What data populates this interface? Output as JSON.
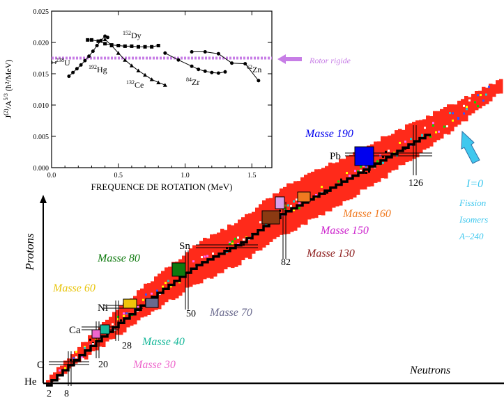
{
  "inset_chart": {
    "ylabel_main": "J",
    "ylabel_sup1": "(2)",
    "ylabel_mid": "/A",
    "ylabel_sup2": "5/3",
    "ylabel_unit": " (ħ²/MeV)",
    "xlabel": "FREQUENCE DE ROTATION (MeV)",
    "y_ticks": [
      "0.000",
      "0.005",
      "0.010",
      "0.015",
      "0.020",
      "0.025"
    ],
    "x_ticks": [
      "0.0",
      "0.5",
      "1.0",
      "1.5"
    ],
    "rotor_label": "Rotor rigide",
    "nuclei": [
      {
        "mass": "152",
        "sym": "Dy"
      },
      {
        "mass": "192",
        "sym": "Hg"
      },
      {
        "mass": "132",
        "sym": "Ce"
      },
      {
        "mass": "84",
        "sym": "Zr"
      },
      {
        "mass": "62",
        "sym": "Zn"
      },
      {
        "mass": "238",
        "sym": "U"
      }
    ]
  },
  "chart_data": {
    "type": "line",
    "xlabel": "FREQUENCE DE ROTATION (MeV)",
    "ylabel": "J(2)/A5/3 (ħ²/MeV)",
    "xlim": [
      0,
      1.65
    ],
    "ylim": [
      0,
      0.025
    ],
    "grid": false,
    "reference_line": {
      "name": "Rotor rigide",
      "y": 0.0175,
      "color": "#c77ee6"
    },
    "series": [
      {
        "name": "152Dy",
        "x": [
          0.27,
          0.3,
          0.35,
          0.4,
          0.45,
          0.5,
          0.55,
          0.6,
          0.65,
          0.7,
          0.75,
          0.8
        ],
        "y": [
          0.0204,
          0.0204,
          0.0202,
          0.0198,
          0.0196,
          0.0195,
          0.0194,
          0.0194,
          0.0193,
          0.0193,
          0.0193,
          0.0195
        ]
      },
      {
        "name": "192Hg",
        "x": [
          0.13,
          0.16,
          0.19,
          0.22,
          0.25,
          0.28,
          0.31,
          0.34,
          0.37,
          0.4,
          0.42
        ],
        "y": [
          0.0146,
          0.0152,
          0.0158,
          0.0164,
          0.0171,
          0.0178,
          0.0186,
          0.0195,
          0.0203,
          0.021,
          0.0208
        ]
      },
      {
        "name": "132Ce",
        "x": [
          0.4,
          0.45,
          0.5,
          0.55,
          0.6,
          0.65,
          0.7,
          0.75,
          0.8,
          0.85
        ],
        "y": [
          0.0205,
          0.0195,
          0.0183,
          0.0172,
          0.0163,
          0.0155,
          0.0148,
          0.0141,
          0.0136,
          0.0132
        ]
      },
      {
        "name": "84Zr",
        "x": [
          0.85,
          0.95,
          1.05,
          1.1,
          1.15,
          1.2,
          1.25,
          1.3
        ],
        "y": [
          0.0183,
          0.0172,
          0.0162,
          0.0157,
          0.0154,
          0.0152,
          0.0151,
          0.0153
        ]
      },
      {
        "name": "62Zn",
        "x": [
          1.05,
          1.15,
          1.25,
          1.35,
          1.45,
          1.55
        ],
        "y": [
          0.0185,
          0.0185,
          0.0182,
          0.0167,
          0.0166,
          0.0139
        ]
      }
    ]
  },
  "main_chart": {
    "xlabel": "Neutrons",
    "ylabel": "Protons",
    "proton_magic": [
      {
        "label": "He",
        "z": 2
      },
      {
        "label": "O",
        "z": 8
      },
      {
        "label": "Ca",
        "z": 20
      },
      {
        "label": "Ni",
        "z": 28
      },
      {
        "label": "Sn",
        "z": 50
      },
      {
        "label": "Pb",
        "z": 82
      }
    ],
    "neutron_magic": [
      {
        "label": "2",
        "n": 2
      },
      {
        "label": "8",
        "n": 8
      },
      {
        "label": "20",
        "n": 20
      },
      {
        "label": "28",
        "n": 28
      },
      {
        "label": "50",
        "n": 50
      },
      {
        "label": "82",
        "n": 82
      },
      {
        "label": "126",
        "n": 126
      }
    ],
    "regions": [
      {
        "label": "Masse 190",
        "color": "#0000ee"
      },
      {
        "label": "Masse 160",
        "color": "#f07a20"
      },
      {
        "label": "Masse 150",
        "color": "#cc22cc"
      },
      {
        "label": "Masse 130",
        "color": "#8b1a1a"
      },
      {
        "label": "Masse 80",
        "color": "#0f7a0f"
      },
      {
        "label": "Masse 70",
        "color": "#6a6a8e"
      },
      {
        "label": "Masse 60",
        "color": "#e8c40a"
      },
      {
        "label": "Masse 40",
        "color": "#18b89a"
      },
      {
        "label": "Masse 30",
        "color": "#ee66cc"
      }
    ],
    "fission": {
      "line1": "I=0",
      "line2": "Fission",
      "line3": "Isomers",
      "line4": "A~240",
      "color": "#40c8ee"
    },
    "chart_color": "#ff2a1a"
  }
}
